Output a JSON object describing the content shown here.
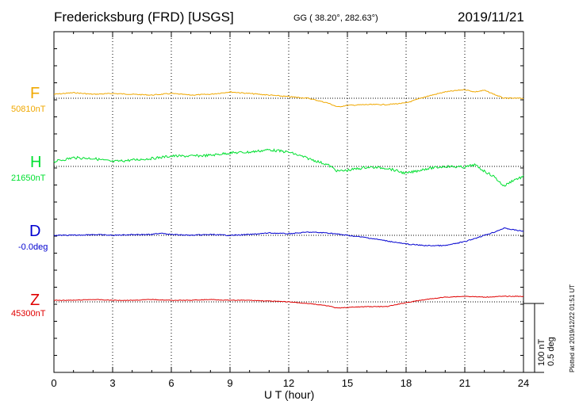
{
  "header": {
    "title": "Fredericksburg (FRD)  [USGS]",
    "coords": "GG ( 38.20°, 282.63°)",
    "date": "2019/11/21"
  },
  "side": {
    "plotted": "Plotted at 2019/12/22 01:51  UT",
    "scale_nt": "100 nT",
    "scale_deg": "0.5 deg"
  },
  "colors": {
    "F": "#f0a800",
    "H": "#00e030",
    "D": "#0000d0",
    "Z": "#e00000",
    "grid": "#000000"
  },
  "chart_data": {
    "type": "line",
    "xlabel": "U T (hour)",
    "xlim": [
      0,
      24
    ],
    "xticks": [
      0,
      3,
      6,
      9,
      12,
      15,
      18,
      21,
      24
    ],
    "xtick_labels": [
      "0",
      "3",
      "6",
      "9",
      "12",
      "15",
      "18",
      "21",
      "24"
    ],
    "grid": true,
    "scale_bar": "100 nT / 0.5 deg",
    "series": [
      {
        "name": "F",
        "baseline": "50810nT",
        "color": "#f0a800",
        "x": [
          0,
          1,
          2,
          3,
          4,
          5,
          6,
          7,
          8,
          9,
          10,
          11,
          12,
          13,
          14,
          14.5,
          15,
          16,
          17,
          18,
          19,
          20,
          21,
          21.5,
          22,
          22.5,
          23,
          24
        ],
        "y": [
          5,
          7,
          5,
          6,
          5,
          4,
          6,
          4,
          5,
          8,
          6,
          4,
          2,
          0,
          -6,
          -11,
          -9,
          -8,
          -8,
          -6,
          2,
          8,
          11,
          8,
          10,
          5,
          0,
          0
        ]
      },
      {
        "name": "H",
        "baseline": "21650nT",
        "color": "#00e030",
        "x": [
          0,
          1,
          2,
          3,
          4,
          5,
          6,
          7,
          8,
          9,
          10,
          11,
          12,
          13,
          14,
          14.5,
          15,
          16,
          17,
          18,
          19,
          20,
          21,
          21.5,
          22,
          22.5,
          23,
          23.5,
          24
        ],
        "y": [
          6,
          11,
          10,
          6,
          8,
          10,
          13,
          13,
          14,
          17,
          18,
          21,
          18,
          10,
          2,
          -6,
          -5,
          -1,
          -2,
          -9,
          -3,
          0,
          -1,
          2,
          -6,
          -13,
          -25,
          -17,
          -13
        ]
      },
      {
        "name": "D",
        "baseline": "-0.0deg",
        "color": "#0000d0",
        "x": [
          0,
          1,
          2,
          3,
          4,
          5,
          5.5,
          6,
          7,
          8,
          9,
          10,
          11,
          12,
          13,
          14,
          15,
          16,
          17,
          18,
          19,
          20,
          21,
          22,
          22.5,
          23,
          24
        ],
        "y": [
          0,
          0,
          1,
          0,
          1,
          1,
          3,
          1,
          0,
          1,
          0,
          1,
          3,
          2,
          4,
          3,
          0,
          -3,
          -7,
          -11,
          -13,
          -13,
          -8,
          0,
          4,
          9,
          5
        ]
      },
      {
        "name": "Z",
        "baseline": "45300nT",
        "color": "#e00000",
        "x": [
          0,
          1,
          2,
          3,
          4,
          5,
          6,
          7,
          8,
          9,
          10,
          11,
          12,
          13,
          14,
          14.5,
          15,
          16,
          17,
          18,
          19,
          20,
          21,
          22,
          23,
          24
        ],
        "y": [
          2,
          2,
          3,
          2,
          2,
          3,
          2,
          2,
          3,
          2,
          2,
          1,
          0,
          -2,
          -5,
          -8,
          -7,
          -6,
          -6,
          -1,
          3,
          6,
          7,
          6,
          7,
          7
        ]
      }
    ]
  }
}
